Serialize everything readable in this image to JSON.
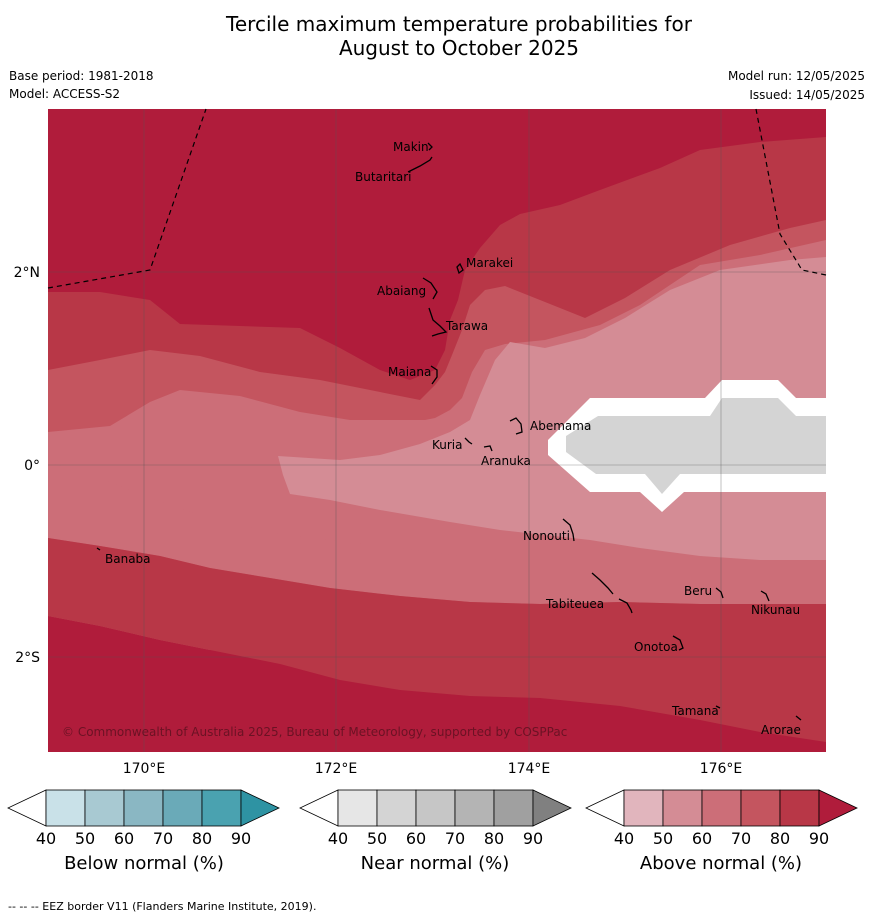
{
  "title_line1": "Tercile maximum temperature probabilities for",
  "title_line2": "August to October 2025",
  "base_period": "Base period: 1981-2018",
  "model": "Model: ACCESS-S2",
  "model_run": "Model run: 12/05/2025",
  "issued": "Issued: 14/05/2025",
  "copyright": "© Commonwealth of Australia 2025, Bureau of Meteorology, supported by COSPPac",
  "footnote": "--  --  -- EEZ border V11 (Flanders Marine Institute, 2019).",
  "lat_labels": [
    "2°N",
    "0°",
    "2°S"
  ],
  "lon_labels": [
    "170°E",
    "172°E",
    "174°E",
    "176°E"
  ],
  "islands": [
    "Makin",
    "Butaritari",
    "Marakei",
    "Abaiang",
    "Tarawa",
    "Maiana",
    "Abemama",
    "Kuria",
    "Aranuka",
    "Nonouti",
    "Banaba",
    "Tabiteuea",
    "Beru",
    "Nikunau",
    "Onotoa",
    "Tamana",
    "Arorae"
  ],
  "colorbars": [
    {
      "label": "Below normal (%)",
      "ticks": [
        "40",
        "50",
        "60",
        "70",
        "80",
        "90"
      ],
      "colors": [
        "#ffffff",
        "#c9e1e8",
        "#a8c9d2",
        "#8ab7c3",
        "#6aaab8",
        "#4aa2b0",
        "#2e93a3"
      ]
    },
    {
      "label": "Near normal (%)",
      "ticks": [
        "40",
        "50",
        "60",
        "70",
        "80",
        "90"
      ],
      "colors": [
        "#ffffff",
        "#e6e6e6",
        "#d4d4d4",
        "#c6c6c6",
        "#b4b4b4",
        "#a0a0a0",
        "#808080"
      ]
    },
    {
      "label": "Above normal (%)",
      "ticks": [
        "40",
        "50",
        "60",
        "70",
        "80",
        "90"
      ],
      "colors": [
        "#ffffff",
        "#e1b5bd",
        "#d48c95",
        "#cc6e78",
        "#c4555f",
        "#b83747",
        "#b01c3b"
      ]
    }
  ],
  "colors": {
    "above_90": "#b01c3b",
    "above_80": "#b83747",
    "above_70": "#c4555f",
    "above_60": "#cc6e78",
    "above_50": "#d48c95",
    "near_50": "#d4d4d4",
    "white": "#ffffff"
  }
}
